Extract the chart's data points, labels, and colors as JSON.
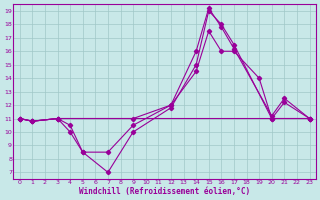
{
  "xlabel": "Windchill (Refroidissement éolien,°C)",
  "ylabel": "",
  "bg_color": "#c8e8e8",
  "line_color": "#990099",
  "xlim": [
    -0.5,
    23.5
  ],
  "ylim": [
    6.5,
    19.5
  ],
  "xticks": [
    0,
    1,
    2,
    3,
    4,
    5,
    6,
    7,
    8,
    9,
    10,
    11,
    12,
    13,
    14,
    15,
    16,
    17,
    18,
    19,
    20,
    21,
    22,
    23
  ],
  "yticks": [
    7,
    8,
    9,
    10,
    11,
    12,
    13,
    14,
    15,
    16,
    17,
    18,
    19
  ],
  "series": [
    {
      "x": [
        0,
        1,
        3,
        4,
        5,
        7,
        9,
        12,
        14,
        15,
        16,
        17,
        20,
        21,
        23
      ],
      "y": [
        11.0,
        10.8,
        11.0,
        10.0,
        8.5,
        7.0,
        10.0,
        11.8,
        15.0,
        19.0,
        18.0,
        16.5,
        11.0,
        12.2,
        11.0
      ]
    },
    {
      "x": [
        0,
        1,
        3,
        4,
        5,
        7,
        9,
        12,
        14,
        15,
        16,
        17,
        20,
        21,
        23
      ],
      "y": [
        11.0,
        10.8,
        11.0,
        10.5,
        8.5,
        8.5,
        10.5,
        12.0,
        16.0,
        19.2,
        17.8,
        16.2,
        11.2,
        12.5,
        11.0
      ]
    },
    {
      "x": [
        0,
        1,
        3,
        23
      ],
      "y": [
        11.0,
        10.8,
        11.0,
        11.0
      ]
    },
    {
      "x": [
        0,
        1,
        3,
        9,
        12,
        14,
        15,
        16,
        17,
        19,
        20,
        23
      ],
      "y": [
        11.0,
        10.8,
        11.0,
        11.0,
        12.0,
        14.5,
        17.5,
        16.0,
        16.0,
        14.0,
        11.0,
        11.0
      ]
    }
  ]
}
